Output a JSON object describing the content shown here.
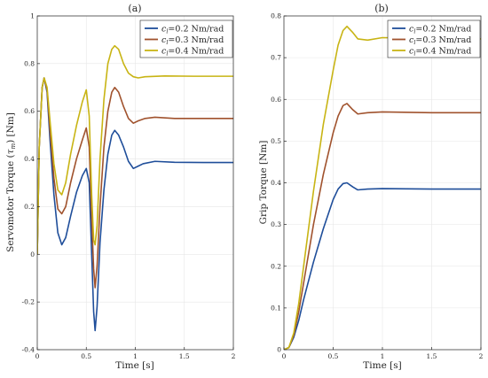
{
  "chart_data": [
    {
      "type": "line",
      "title": "(a)",
      "xlabel": "Time [s]",
      "ylabel": "Servomotor Torque (τm) [Nm]",
      "xlim": [
        0,
        2
      ],
      "ylim": [
        -0.4,
        1
      ],
      "xticks": [
        "0",
        "0.5",
        "1",
        "1.5",
        "2"
      ],
      "yticks": [
        "-0.4",
        "-0.2",
        "0",
        "0.2",
        "0.4",
        "0.6",
        "0.8",
        "1"
      ],
      "grid": true,
      "legend_position": "top-right",
      "series": [
        {
          "name": "c_l=0.2 Nm/rad",
          "color": "#1f4e9a",
          "points": [
            [
              0,
              0
            ],
            [
              0.02,
              0.45
            ],
            [
              0.05,
              0.7
            ],
            [
              0.07,
              0.74
            ],
            [
              0.1,
              0.68
            ],
            [
              0.13,
              0.48
            ],
            [
              0.17,
              0.25
            ],
            [
              0.21,
              0.09
            ],
            [
              0.25,
              0.04
            ],
            [
              0.29,
              0.07
            ],
            [
              0.34,
              0.16
            ],
            [
              0.4,
              0.26
            ],
            [
              0.46,
              0.33
            ],
            [
              0.5,
              0.36
            ],
            [
              0.53,
              0.3
            ],
            [
              0.555,
              0.0
            ],
            [
              0.575,
              -0.24
            ],
            [
              0.59,
              -0.32
            ],
            [
              0.61,
              -0.22
            ],
            [
              0.64,
              0.05
            ],
            [
              0.68,
              0.27
            ],
            [
              0.72,
              0.42
            ],
            [
              0.76,
              0.5
            ],
            [
              0.79,
              0.52
            ],
            [
              0.83,
              0.5
            ],
            [
              0.88,
              0.45
            ],
            [
              0.93,
              0.39
            ],
            [
              0.98,
              0.36
            ],
            [
              1.03,
              0.37
            ],
            [
              1.08,
              0.38
            ],
            [
              1.2,
              0.39
            ],
            [
              1.4,
              0.386
            ],
            [
              1.7,
              0.385
            ],
            [
              2.0,
              0.385
            ]
          ]
        },
        {
          "name": "c_l=0.3 Nm/rad",
          "color": "#a0522d",
          "points": [
            [
              0,
              0
            ],
            [
              0.02,
              0.45
            ],
            [
              0.05,
              0.7
            ],
            [
              0.07,
              0.74
            ],
            [
              0.1,
              0.69
            ],
            [
              0.13,
              0.52
            ],
            [
              0.17,
              0.32
            ],
            [
              0.21,
              0.19
            ],
            [
              0.25,
              0.17
            ],
            [
              0.29,
              0.2
            ],
            [
              0.34,
              0.3
            ],
            [
              0.4,
              0.4
            ],
            [
              0.46,
              0.48
            ],
            [
              0.5,
              0.53
            ],
            [
              0.53,
              0.45
            ],
            [
              0.555,
              0.15
            ],
            [
              0.575,
              -0.06
            ],
            [
              0.59,
              -0.14
            ],
            [
              0.61,
              -0.05
            ],
            [
              0.64,
              0.2
            ],
            [
              0.68,
              0.45
            ],
            [
              0.72,
              0.6
            ],
            [
              0.76,
              0.68
            ],
            [
              0.79,
              0.7
            ],
            [
              0.83,
              0.68
            ],
            [
              0.88,
              0.62
            ],
            [
              0.93,
              0.57
            ],
            [
              0.98,
              0.55
            ],
            [
              1.03,
              0.56
            ],
            [
              1.1,
              0.57
            ],
            [
              1.2,
              0.575
            ],
            [
              1.4,
              0.57
            ],
            [
              1.7,
              0.57
            ],
            [
              2.0,
              0.57
            ]
          ]
        },
        {
          "name": "c_l=0.4 Nm/rad",
          "color": "#c8b414",
          "points": [
            [
              0,
              0
            ],
            [
              0.02,
              0.45
            ],
            [
              0.05,
              0.7
            ],
            [
              0.07,
              0.74
            ],
            [
              0.1,
              0.7
            ],
            [
              0.13,
              0.56
            ],
            [
              0.17,
              0.38
            ],
            [
              0.21,
              0.27
            ],
            [
              0.25,
              0.25
            ],
            [
              0.29,
              0.3
            ],
            [
              0.34,
              0.42
            ],
            [
              0.4,
              0.54
            ],
            [
              0.46,
              0.64
            ],
            [
              0.5,
              0.69
            ],
            [
              0.53,
              0.58
            ],
            [
              0.555,
              0.25
            ],
            [
              0.575,
              0.06
            ],
            [
              0.59,
              0.04
            ],
            [
              0.61,
              0.12
            ],
            [
              0.64,
              0.4
            ],
            [
              0.68,
              0.65
            ],
            [
              0.72,
              0.8
            ],
            [
              0.76,
              0.86
            ],
            [
              0.79,
              0.875
            ],
            [
              0.83,
              0.86
            ],
            [
              0.88,
              0.8
            ],
            [
              0.93,
              0.76
            ],
            [
              0.98,
              0.745
            ],
            [
              1.03,
              0.74
            ],
            [
              1.1,
              0.745
            ],
            [
              1.3,
              0.748
            ],
            [
              1.6,
              0.747
            ],
            [
              2.0,
              0.747
            ]
          ]
        }
      ]
    },
    {
      "type": "line",
      "title": "(b)",
      "xlabel": "Time [s]",
      "ylabel": "Grip Torque [Nm]",
      "xlim": [
        0,
        2
      ],
      "ylim": [
        0,
        0.8
      ],
      "xticks": [
        "0",
        "0.5",
        "1",
        "1.5",
        "2"
      ],
      "yticks": [
        "0",
        "0.1",
        "0.2",
        "0.3",
        "0.4",
        "0.5",
        "0.6",
        "0.7",
        "0.8"
      ],
      "grid": true,
      "legend_position": "top-right",
      "series": [
        {
          "name": "c_l=0.2 Nm/rad",
          "color": "#1f4e9a",
          "points": [
            [
              0,
              0
            ],
            [
              0.05,
              0.005
            ],
            [
              0.1,
              0.03
            ],
            [
              0.15,
              0.07
            ],
            [
              0.2,
              0.12
            ],
            [
              0.3,
              0.21
            ],
            [
              0.4,
              0.29
            ],
            [
              0.5,
              0.36
            ],
            [
              0.55,
              0.385
            ],
            [
              0.6,
              0.398
            ],
            [
              0.64,
              0.4
            ],
            [
              0.7,
              0.39
            ],
            [
              0.75,
              0.383
            ],
            [
              0.85,
              0.385
            ],
            [
              1.0,
              0.386
            ],
            [
              1.5,
              0.385
            ],
            [
              2.0,
              0.385
            ]
          ]
        },
        {
          "name": "c_l=0.3 Nm/rad",
          "color": "#a0522d",
          "points": [
            [
              0,
              0
            ],
            [
              0.05,
              0.005
            ],
            [
              0.1,
              0.035
            ],
            [
              0.15,
              0.09
            ],
            [
              0.2,
              0.16
            ],
            [
              0.3,
              0.3
            ],
            [
              0.4,
              0.42
            ],
            [
              0.5,
              0.52
            ],
            [
              0.55,
              0.56
            ],
            [
              0.6,
              0.585
            ],
            [
              0.64,
              0.59
            ],
            [
              0.7,
              0.575
            ],
            [
              0.75,
              0.565
            ],
            [
              0.85,
              0.568
            ],
            [
              1.0,
              0.57
            ],
            [
              1.5,
              0.568
            ],
            [
              2.0,
              0.568
            ]
          ]
        },
        {
          "name": "c_l=0.4 Nm/rad",
          "color": "#c8b414",
          "points": [
            [
              0,
              0
            ],
            [
              0.05,
              0.005
            ],
            [
              0.1,
              0.04
            ],
            [
              0.15,
              0.11
            ],
            [
              0.2,
              0.2
            ],
            [
              0.3,
              0.38
            ],
            [
              0.4,
              0.54
            ],
            [
              0.5,
              0.67
            ],
            [
              0.55,
              0.73
            ],
            [
              0.6,
              0.765
            ],
            [
              0.64,
              0.775
            ],
            [
              0.7,
              0.76
            ],
            [
              0.75,
              0.745
            ],
            [
              0.85,
              0.742
            ],
            [
              1.0,
              0.748
            ],
            [
              1.5,
              0.746
            ],
            [
              2.0,
              0.745
            ]
          ]
        }
      ]
    }
  ]
}
